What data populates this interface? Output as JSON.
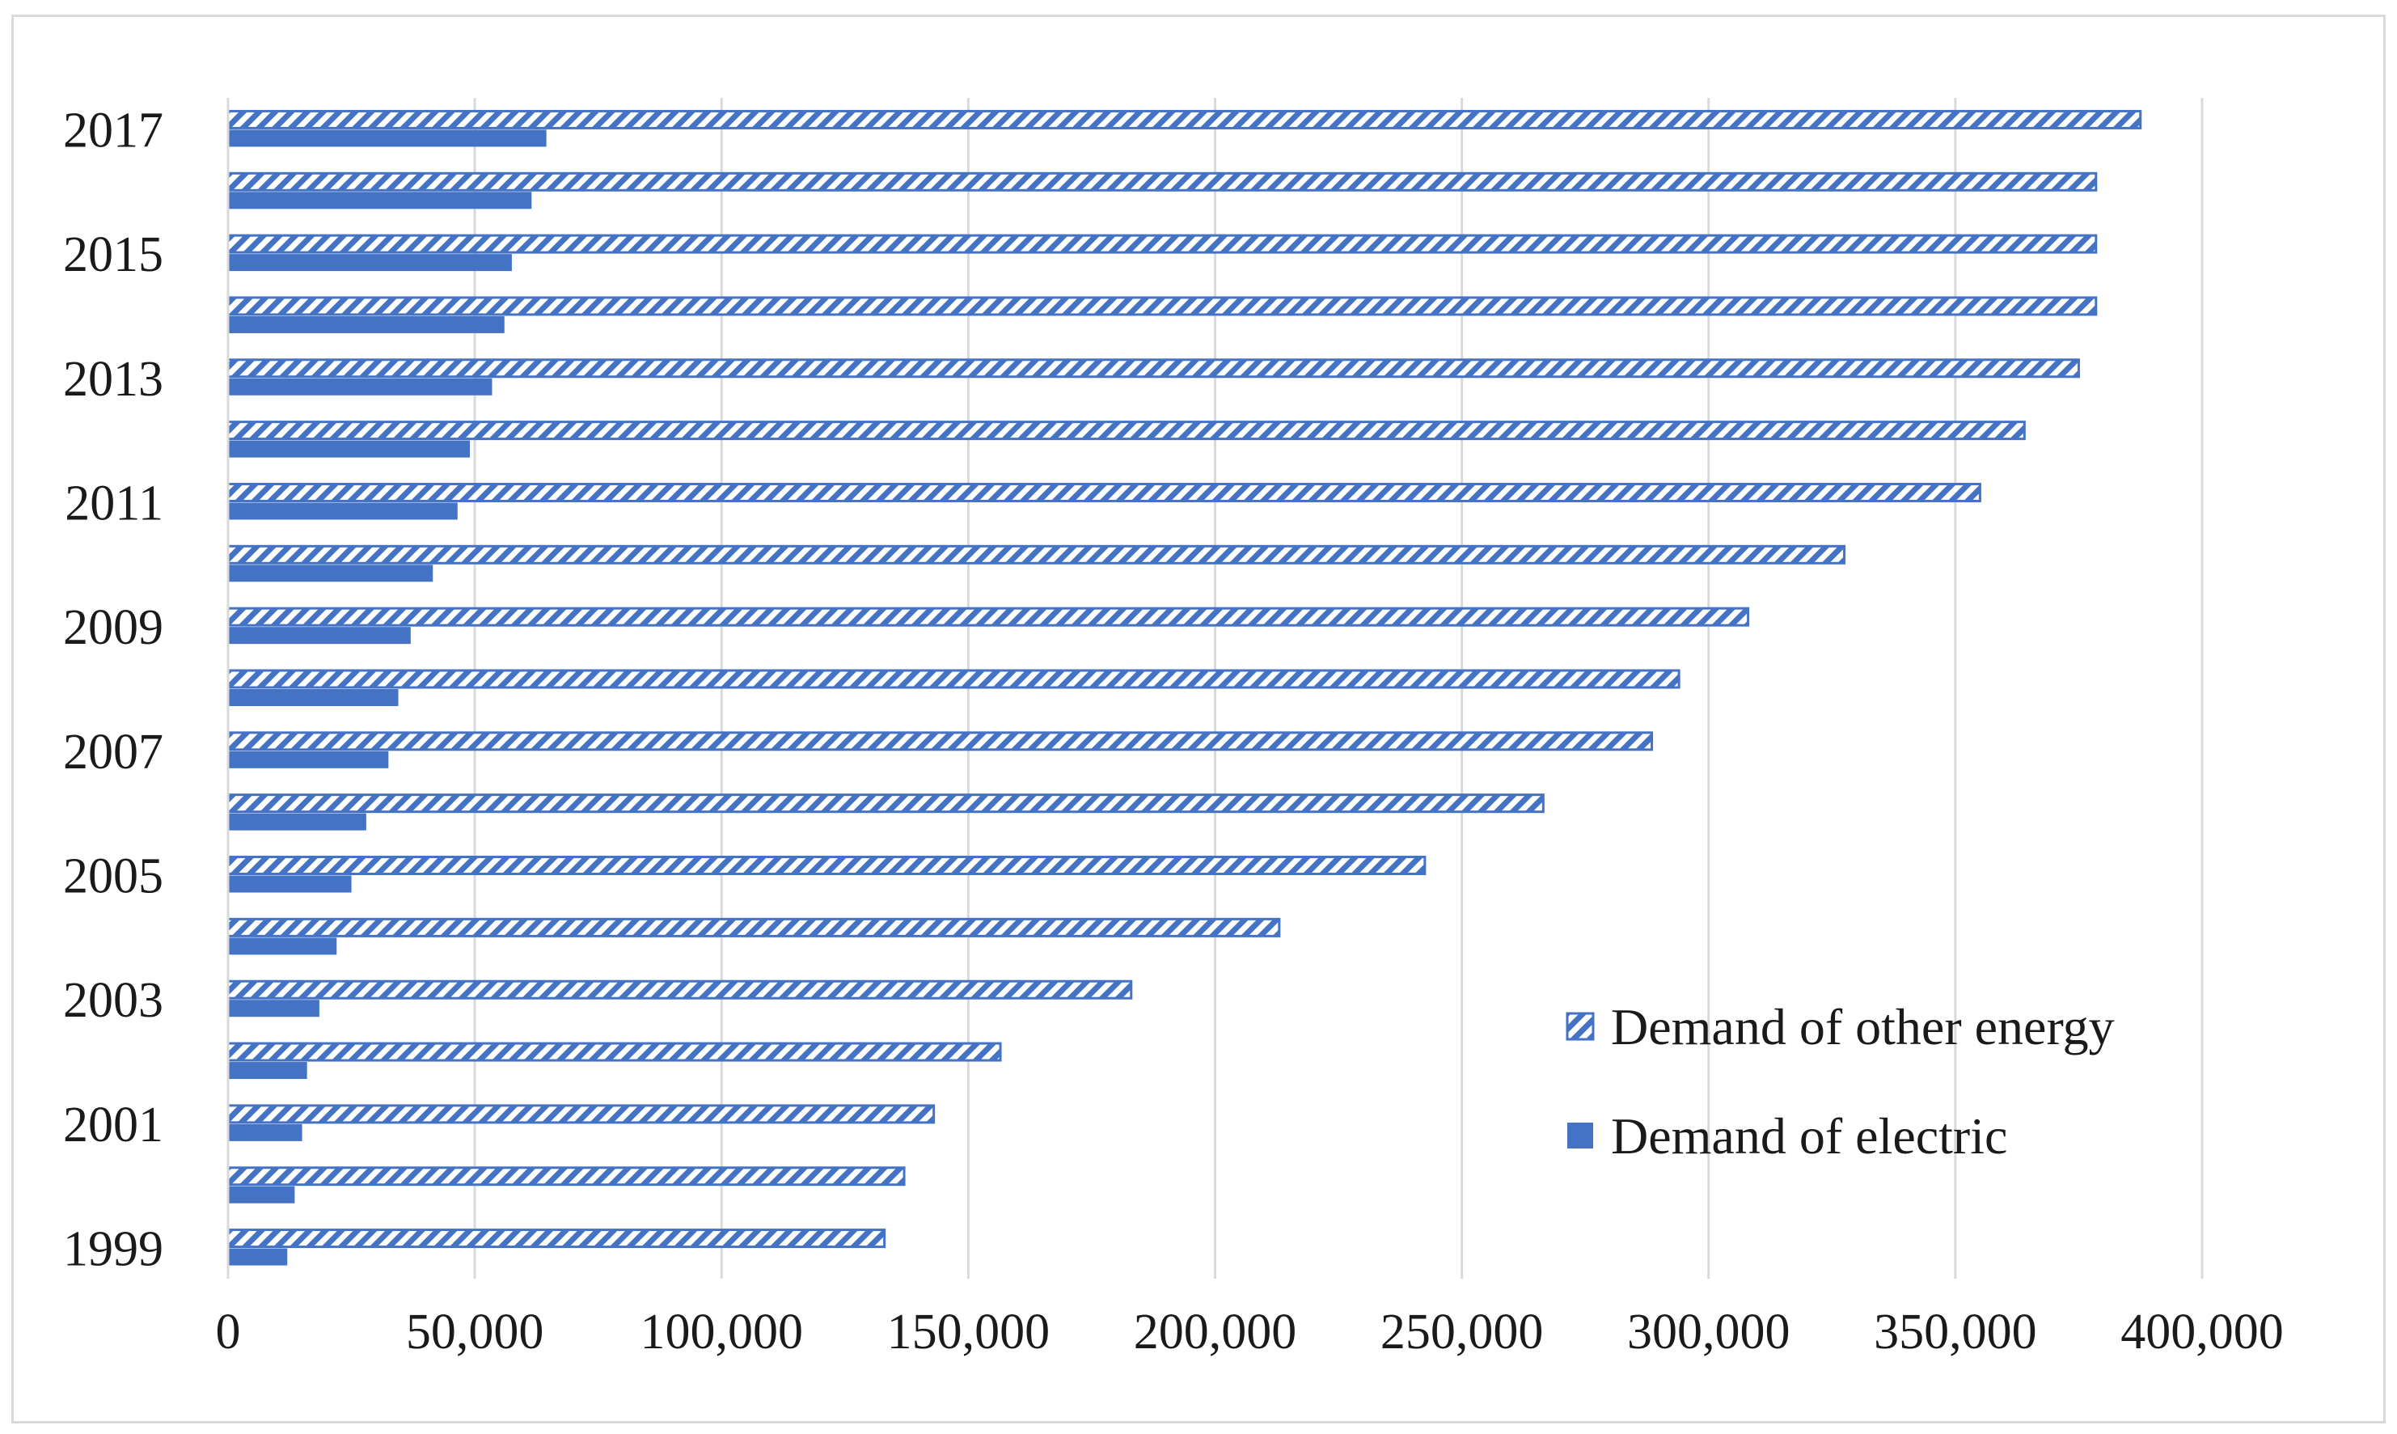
{
  "chart_data": {
    "type": "bar",
    "orientation": "horizontal",
    "title": "",
    "xlabel": "",
    "ylabel": "",
    "categories": [
      "1999",
      "2000",
      "2001",
      "2002",
      "2003",
      "2004",
      "2005",
      "2006",
      "2007",
      "2008",
      "2009",
      "2010",
      "2011",
      "2012",
      "2013",
      "2014",
      "2015",
      "2016",
      "2017"
    ],
    "y_tick_labels": [
      "1999",
      "2001",
      "2003",
      "2005",
      "2007",
      "2009",
      "2011",
      "2013",
      "2015",
      "2017"
    ],
    "x_tick_values": [
      0,
      50000,
      100000,
      150000,
      200000,
      250000,
      300000,
      350000,
      400000
    ],
    "x_tick_labels": [
      "0",
      "50,000",
      "100,000",
      "150,000",
      "200,000",
      "250,000",
      "300,000",
      "350,000",
      "400,000"
    ],
    "xlim": [
      0,
      400000
    ],
    "grid": "vertical",
    "legend_position": "bottom-right",
    "series": [
      {
        "name": "Demand of other energy",
        "pattern": "hatched",
        "color": "#4472c4",
        "values": [
          133000,
          137000,
          143000,
          156500,
          183000,
          213000,
          242500,
          266500,
          288500,
          294000,
          308000,
          327500,
          355000,
          364000,
          375000,
          378500,
          378500,
          378500,
          387500
        ]
      },
      {
        "name": "Demand of electric",
        "pattern": "solid",
        "color": "#4472c4",
        "values": [
          12000,
          13500,
          15000,
          16000,
          18500,
          22000,
          25000,
          28000,
          32500,
          34500,
          37000,
          41500,
          46500,
          49000,
          53500,
          56000,
          57500,
          61500,
          64500
        ]
      }
    ]
  }
}
